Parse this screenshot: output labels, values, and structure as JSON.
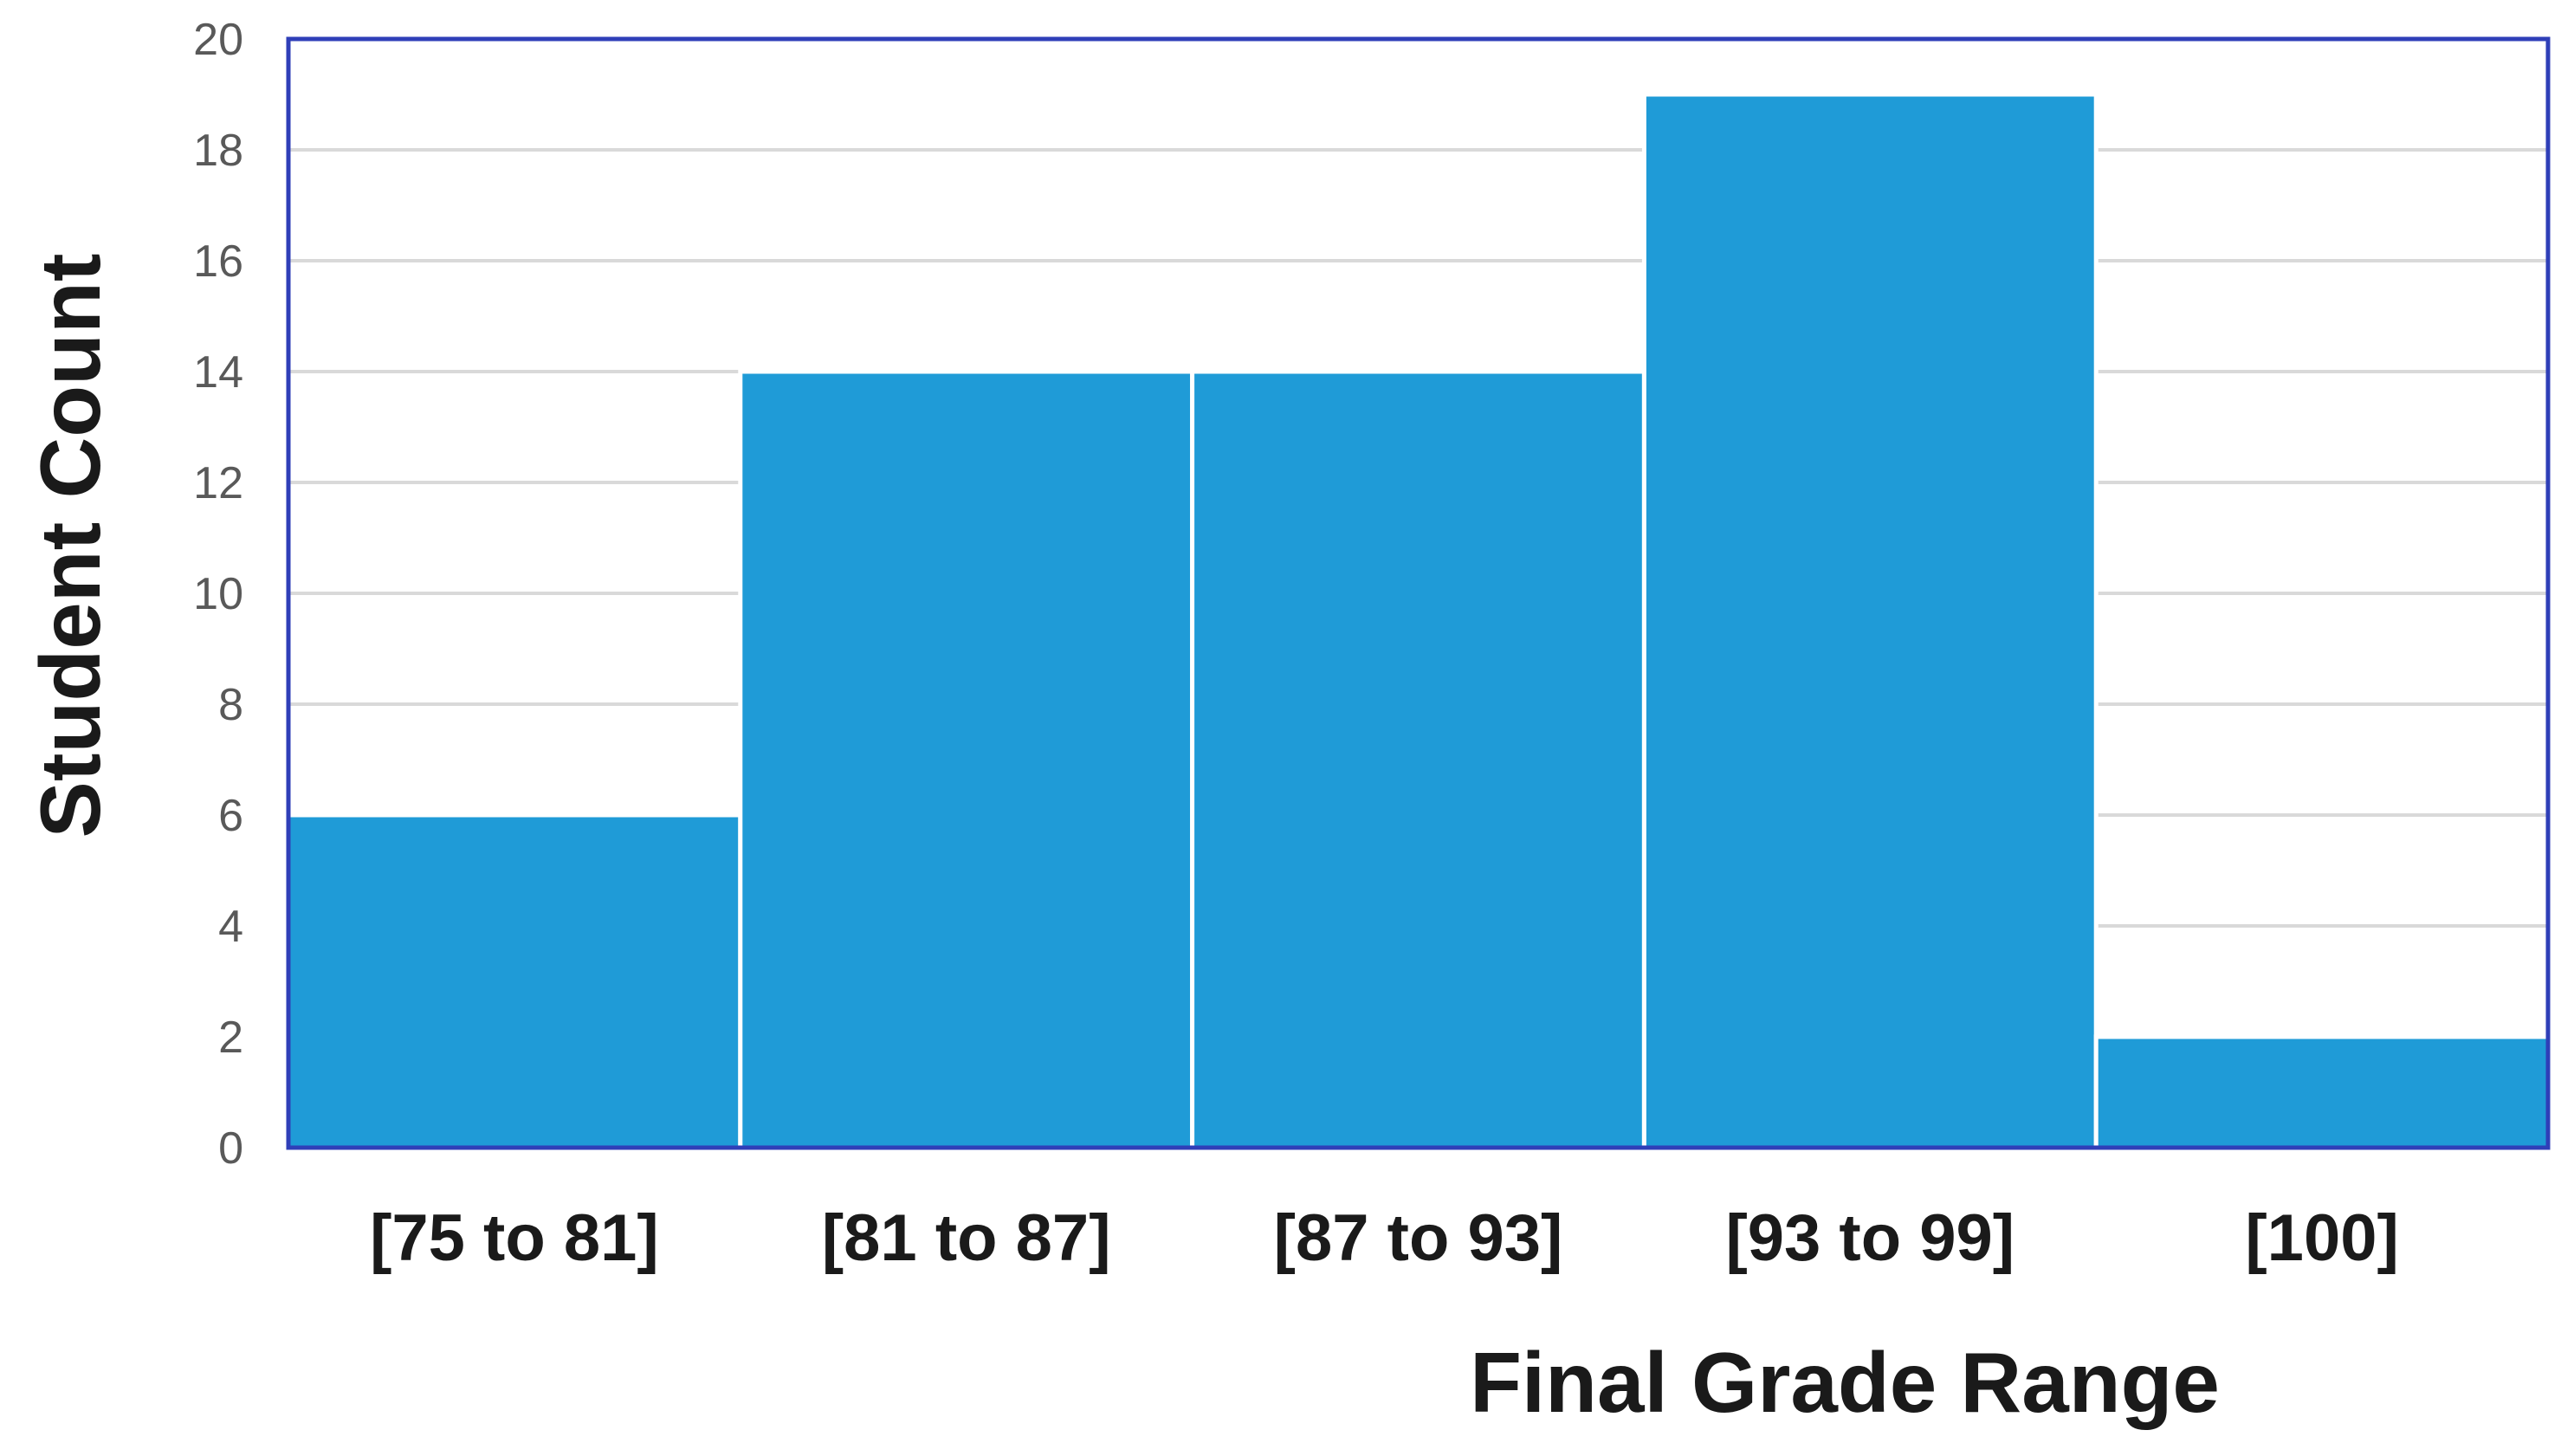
{
  "chart_data": {
    "type": "bar",
    "categories": [
      "[75 to 81]",
      "[81 to 87]",
      "[87 to 93]",
      "[93 to 99]",
      "[100]"
    ],
    "values": [
      6,
      14,
      14,
      19,
      2
    ],
    "xlabel": "Final Grade Range",
    "ylabel": "Student Count",
    "ylim": [
      0,
      20
    ],
    "yticks": [
      0,
      2,
      4,
      6,
      8,
      10,
      12,
      14,
      16,
      18,
      20
    ],
    "grid": true,
    "legend": "none",
    "colors": {
      "bar": "#1f9bd7",
      "frame": "#2f3fb8",
      "gridline": "#d9d9d9"
    }
  }
}
